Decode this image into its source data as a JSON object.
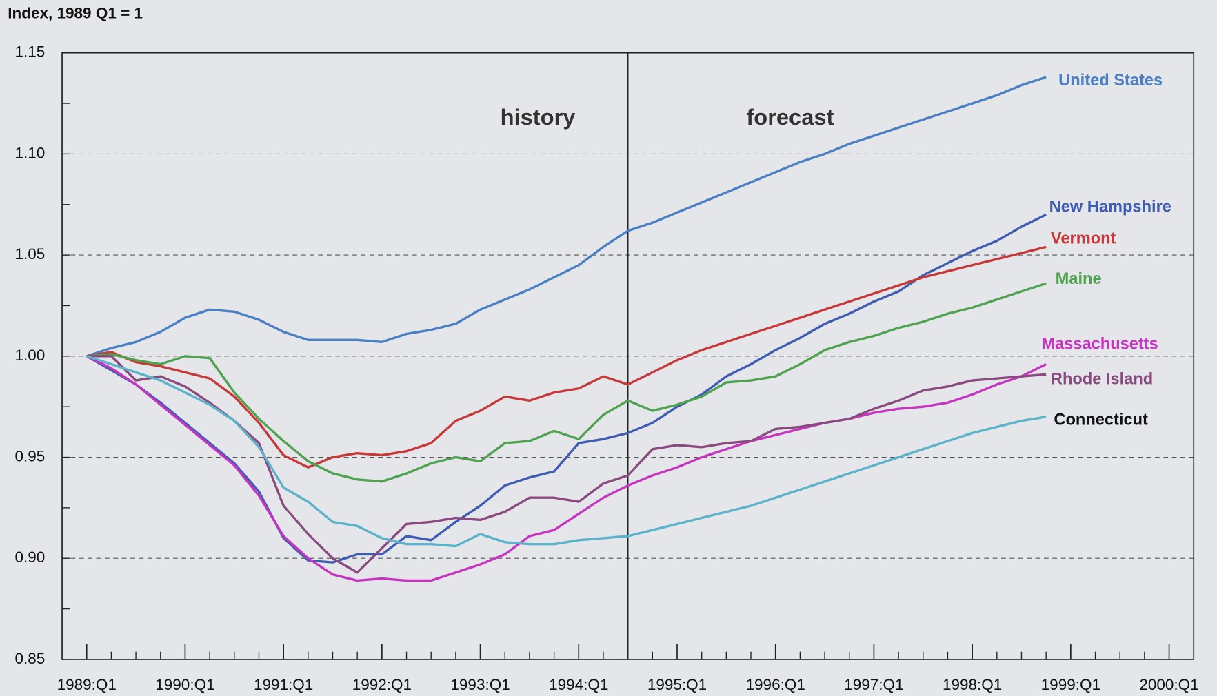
{
  "chart_data": {
    "type": "line",
    "y_label": "Index, 1989 Q1 = 1",
    "annotations": [
      "history",
      "forecast"
    ],
    "divider_x": 1994.5,
    "xlim": [
      1988.75,
      2000.25
    ],
    "xticks": [
      {
        "value": 1989,
        "label": "1989:Q1"
      },
      {
        "value": 1990,
        "label": "1990:Q1"
      },
      {
        "value": 1991,
        "label": "1991:Q1"
      },
      {
        "value": 1992,
        "label": "1992:Q1"
      },
      {
        "value": 1993,
        "label": "1993:Q1"
      },
      {
        "value": 1994,
        "label": "1994:Q1"
      },
      {
        "value": 1995,
        "label": "1995:Q1"
      },
      {
        "value": 1996,
        "label": "1996:Q1"
      },
      {
        "value": 1997,
        "label": "1997:Q1"
      },
      {
        "value": 1998,
        "label": "1998:Q1"
      },
      {
        "value": 1999,
        "label": "1999:Q1"
      },
      {
        "value": 2000,
        "label": "2000:Q1"
      }
    ],
    "ylim": [
      0.85,
      1.15
    ],
    "yticks": [
      {
        "value": 0.85,
        "label": "0.85"
      },
      {
        "value": 0.9,
        "label": "0.90"
      },
      {
        "value": 0.95,
        "label": "0.95"
      },
      {
        "value": 1.0,
        "label": "1.00"
      },
      {
        "value": 1.05,
        "label": "1.05"
      },
      {
        "value": 1.1,
        "label": "1.10"
      },
      {
        "value": 1.15,
        "label": "1.15"
      }
    ],
    "grid": true,
    "x": [
      1989,
      1989.25,
      1989.5,
      1989.75,
      1990,
      1990.25,
      1990.5,
      1990.75,
      1991,
      1991.25,
      1991.5,
      1991.75,
      1992,
      1992.25,
      1992.5,
      1992.75,
      1993,
      1993.25,
      1993.5,
      1993.75,
      1994,
      1994.25,
      1994.5,
      1994.75,
      1995,
      1995.25,
      1995.5,
      1995.75,
      1996,
      1996.25,
      1996.5,
      1996.75,
      1997,
      1997.25,
      1997.5,
      1997.75,
      1998,
      1998.25,
      1998.5,
      1998.75
    ],
    "series": [
      {
        "name": "United States",
        "color": "#4a7fc4",
        "values": [
          1.0,
          1.004,
          1.007,
          1.012,
          1.019,
          1.023,
          1.022,
          1.018,
          1.012,
          1.008,
          1.008,
          1.008,
          1.007,
          1.011,
          1.013,
          1.016,
          1.023,
          1.028,
          1.033,
          1.039,
          1.045,
          1.054,
          1.062,
          1.066,
          1.071,
          1.076,
          1.081,
          1.086,
          1.091,
          1.096,
          1.1,
          1.105,
          1.109,
          1.113,
          1.117,
          1.121,
          1.125,
          1.129,
          1.134,
          1.138
        ]
      },
      {
        "name": "New Hampshire",
        "color": "#3e5cb2",
        "values": [
          1.0,
          0.993,
          0.986,
          0.977,
          0.967,
          0.957,
          0.947,
          0.933,
          0.91,
          0.899,
          0.898,
          0.902,
          0.902,
          0.911,
          0.909,
          0.918,
          0.926,
          0.936,
          0.94,
          0.943,
          0.957,
          0.959,
          0.962,
          0.967,
          0.975,
          0.981,
          0.99,
          0.996,
          1.003,
          1.009,
          1.016,
          1.021,
          1.027,
          1.032,
          1.04,
          1.046,
          1.052,
          1.057,
          1.064,
          1.07
        ]
      },
      {
        "name": "Vermont",
        "color": "#c83838",
        "values": [
          1.0,
          1.002,
          0.997,
          0.995,
          0.992,
          0.989,
          0.98,
          0.967,
          0.951,
          0.945,
          0.95,
          0.952,
          0.951,
          0.953,
          0.957,
          0.968,
          0.973,
          0.98,
          0.978,
          0.982,
          0.984,
          0.99,
          0.986,
          0.992,
          0.998,
          1.003,
          1.007,
          1.011,
          1.015,
          1.019,
          1.023,
          1.027,
          1.031,
          1.035,
          1.039,
          1.042,
          1.045,
          1.048,
          1.051,
          1.054
        ]
      },
      {
        "name": "Maine",
        "color": "#4fa24f",
        "values": [
          1.0,
          1.001,
          0.998,
          0.996,
          1.0,
          0.999,
          0.982,
          0.969,
          0.958,
          0.948,
          0.942,
          0.939,
          0.938,
          0.942,
          0.947,
          0.95,
          0.948,
          0.957,
          0.958,
          0.963,
          0.959,
          0.971,
          0.978,
          0.973,
          0.976,
          0.98,
          0.987,
          0.988,
          0.99,
          0.996,
          1.003,
          1.007,
          1.01,
          1.014,
          1.017,
          1.021,
          1.024,
          1.028,
          1.032,
          1.036
        ]
      },
      {
        "name": "Massachusetts",
        "color": "#c535c0",
        "values": [
          1.0,
          0.994,
          0.986,
          0.976,
          0.966,
          0.956,
          0.946,
          0.931,
          0.911,
          0.9,
          0.892,
          0.889,
          0.89,
          0.889,
          0.889,
          0.893,
          0.897,
          0.902,
          0.911,
          0.914,
          0.922,
          0.93,
          0.936,
          0.941,
          0.945,
          0.95,
          0.954,
          0.958,
          0.961,
          0.964,
          0.967,
          0.969,
          0.972,
          0.974,
          0.975,
          0.977,
          0.981,
          0.986,
          0.99,
          0.996
        ]
      },
      {
        "name": "Rhode Island",
        "color": "#8b4a7f",
        "values": [
          1.0,
          1.0,
          0.988,
          0.99,
          0.985,
          0.977,
          0.968,
          0.957,
          0.926,
          0.912,
          0.9,
          0.893,
          0.905,
          0.917,
          0.918,
          0.92,
          0.919,
          0.923,
          0.93,
          0.93,
          0.928,
          0.937,
          0.941,
          0.954,
          0.956,
          0.955,
          0.957,
          0.958,
          0.964,
          0.965,
          0.967,
          0.969,
          0.974,
          0.978,
          0.983,
          0.985,
          0.988,
          0.989,
          0.99,
          0.991
        ]
      },
      {
        "name": "Connecticut",
        "color": "#5cb2ca",
        "label_color": "#111111",
        "values": [
          1.0,
          0.996,
          0.992,
          0.988,
          0.982,
          0.976,
          0.968,
          0.955,
          0.935,
          0.928,
          0.918,
          0.916,
          0.91,
          0.907,
          0.907,
          0.906,
          0.912,
          0.908,
          0.907,
          0.907,
          0.909,
          0.91,
          0.911,
          0.914,
          0.917,
          0.92,
          0.923,
          0.926,
          0.93,
          0.934,
          0.938,
          0.942,
          0.946,
          0.95,
          0.954,
          0.958,
          0.962,
          0.965,
          0.968,
          0.97
        ]
      }
    ]
  }
}
